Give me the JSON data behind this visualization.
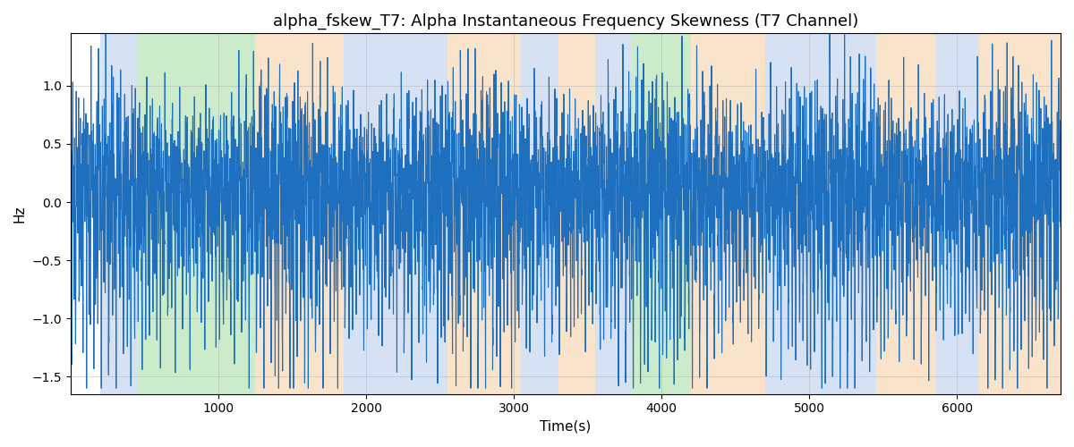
{
  "title": "alpha_fskew_T7: Alpha Instantaneous Frequency Skewness (T7 Channel)",
  "xlabel": "Time(s)",
  "ylabel": "Hz",
  "xlim": [
    0,
    6700
  ],
  "ylim": [
    -1.65,
    1.45
  ],
  "line_color": "#1f6fbf",
  "line_width": 0.8,
  "bg_regions": [
    {
      "xstart": 200,
      "xend": 450,
      "color": "#aec6e8",
      "alpha": 0.5
    },
    {
      "xstart": 450,
      "xend": 1250,
      "color": "#98d898",
      "alpha": 0.5
    },
    {
      "xstart": 1250,
      "xend": 1850,
      "color": "#f5c897",
      "alpha": 0.5
    },
    {
      "xstart": 1850,
      "xend": 2550,
      "color": "#aec6e8",
      "alpha": 0.5
    },
    {
      "xstart": 2550,
      "xend": 3050,
      "color": "#f5c897",
      "alpha": 0.5
    },
    {
      "xstart": 3050,
      "xend": 3300,
      "color": "#aec6e8",
      "alpha": 0.5
    },
    {
      "xstart": 3300,
      "xend": 3550,
      "color": "#f5c897",
      "alpha": 0.5
    },
    {
      "xstart": 3550,
      "xend": 3800,
      "color": "#aec6e8",
      "alpha": 0.5
    },
    {
      "xstart": 3800,
      "xend": 4200,
      "color": "#98d898",
      "alpha": 0.5
    },
    {
      "xstart": 4200,
      "xend": 4700,
      "color": "#f5c897",
      "alpha": 0.5
    },
    {
      "xstart": 4700,
      "xend": 5450,
      "color": "#aec6e8",
      "alpha": 0.5
    },
    {
      "xstart": 5450,
      "xend": 5850,
      "color": "#f5c897",
      "alpha": 0.5
    },
    {
      "xstart": 5850,
      "xend": 6150,
      "color": "#aec6e8",
      "alpha": 0.5
    },
    {
      "xstart": 6150,
      "xend": 6700,
      "color": "#f5c897",
      "alpha": 0.5
    }
  ],
  "yticks": [
    -1.5,
    -1.0,
    -0.5,
    0.0,
    0.5,
    1.0
  ],
  "xticks": [
    1000,
    2000,
    3000,
    4000,
    5000,
    6000
  ],
  "grid_color": "#aaaaaa",
  "grid_alpha": 0.6,
  "title_fontsize": 13,
  "figsize": [
    12.0,
    5.0
  ],
  "dpi": 100
}
